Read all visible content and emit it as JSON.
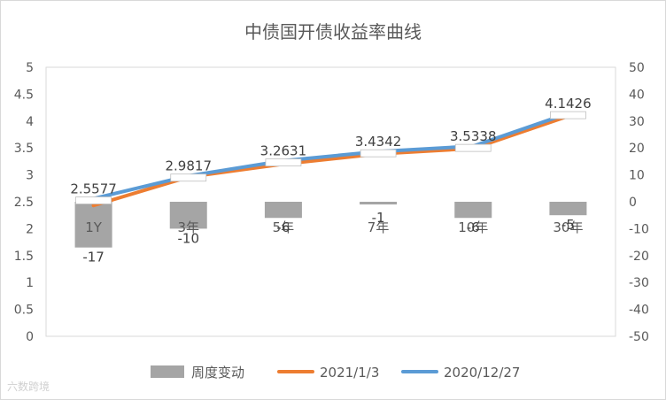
{
  "chart_data": {
    "type": "bar+line",
    "title": "中债国开债收益率曲线",
    "categories": [
      "1Y",
      "3年",
      "5年",
      "7年",
      "10年",
      "30年"
    ],
    "series": [
      {
        "name": "周度变动",
        "type": "bar",
        "axis": "right",
        "values": [
          -17,
          -10,
          -6,
          -1,
          -6,
          -5
        ],
        "color": "#a5a5a5"
      },
      {
        "name": "2021/1/3",
        "type": "line",
        "axis": "left",
        "values": [
          2.43,
          2.96,
          3.2,
          3.39,
          3.49,
          4.09
        ],
        "color": "#ed7d31"
      },
      {
        "name": "2020/12/27",
        "type": "line",
        "axis": "left",
        "values": [
          2.5577,
          2.9817,
          3.2631,
          3.4342,
          3.5338,
          4.1426
        ],
        "color": "#5b9bd5",
        "labels": [
          "2.5577",
          "2.9817",
          "3.2631",
          "3.4342",
          "3.5338",
          "4.1426"
        ]
      }
    ],
    "y_left": {
      "min": 0,
      "max": 5,
      "ticks": [
        "0",
        "0.5",
        "1",
        "1.5",
        "2",
        "2.5",
        "3",
        "3.5",
        "4",
        "4.5",
        "5"
      ]
    },
    "y_right": {
      "min": -50,
      "max": 50,
      "ticks": [
        "-50",
        "-40",
        "-30",
        "-20",
        "-10",
        "0",
        "10",
        "20",
        "30",
        "40",
        "50"
      ]
    },
    "bar_labels": [
      "-17",
      "-10",
      "-6",
      "-1",
      "-6",
      "-5"
    ],
    "legend": {
      "position": "bottom",
      "items": [
        "周度变动",
        "2021/1/3",
        "2020/12/27"
      ]
    },
    "grid": false
  },
  "watermark": "六数跨境"
}
